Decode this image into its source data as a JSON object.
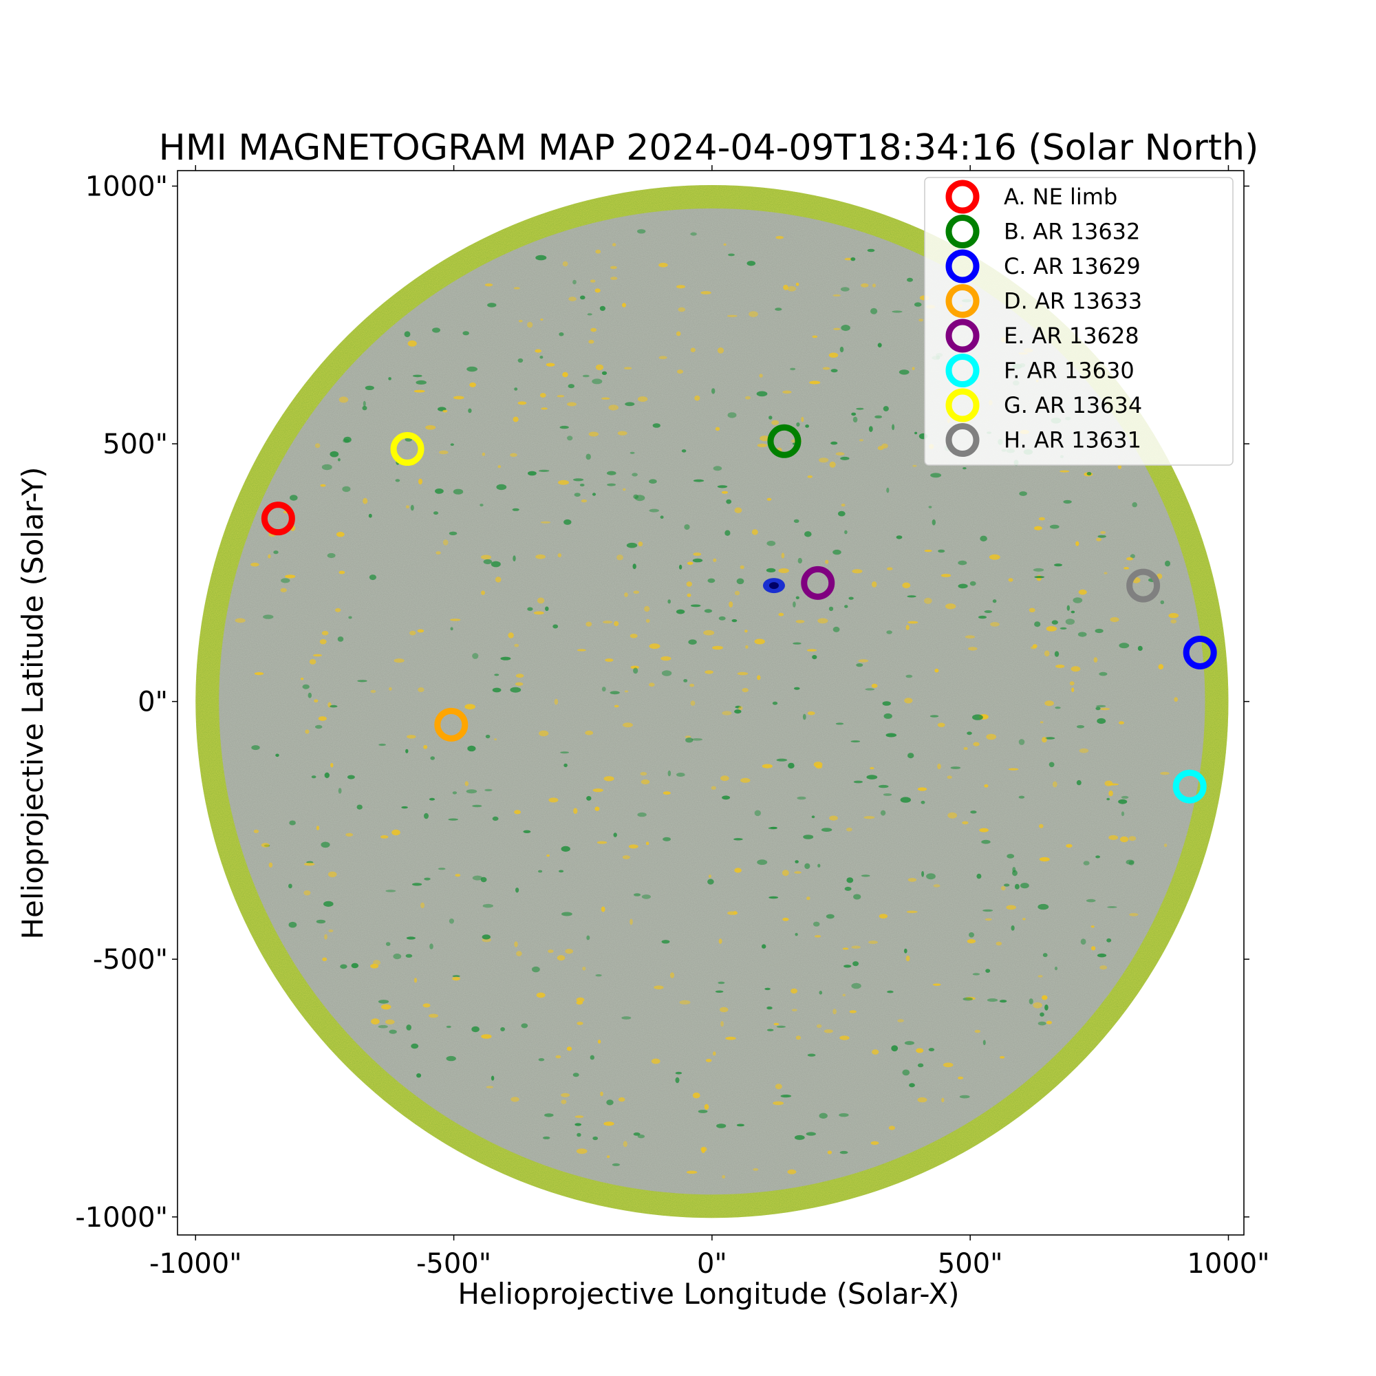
{
  "chart_data": {
    "type": "scatter",
    "title": "HMI MAGNETOGRAM MAP 2024-04-09T18:34:16 (Solar North)",
    "xlabel": "Helioprojective Longitude (Solar-X)",
    "ylabel": "Helioprojective Latitude (Solar-Y)",
    "xlim": [
      -1035,
      1030
    ],
    "ylim": [
      -1035,
      1030
    ],
    "x_ticks": [
      -1000,
      -500,
      0,
      500,
      1000
    ],
    "x_tick_labels": [
      "-1000\"",
      "-500\"",
      "0\"",
      "500\"",
      "1000\""
    ],
    "y_ticks": [
      -1000,
      -500,
      0,
      500,
      1000
    ],
    "y_tick_labels": [
      "-1000\"",
      "-500\"",
      "0\"",
      "500\"",
      "1000\""
    ],
    "solar_radius_arcsec": 1000,
    "legend_position": "top-right",
    "grid": false,
    "series": [
      {
        "name": "A.  NE limb",
        "color": "#ff0000",
        "x": -840,
        "y": 355
      },
      {
        "name": "B.  AR 13632",
        "color": "#008000",
        "x": 140,
        "y": 505
      },
      {
        "name": "C.  AR 13629",
        "color": "#0000ff",
        "x": 945,
        "y": 95
      },
      {
        "name": "D.  AR 13633",
        "color": "#ffa500",
        "x": -505,
        "y": -45
      },
      {
        "name": "E.  AR 13628",
        "color": "#800080",
        "x": 205,
        "y": 230
      },
      {
        "name": "F.  AR 13630",
        "color": "#00ffff",
        "x": 925,
        "y": -165
      },
      {
        "name": "G.  AR 13634",
        "color": "#ffff00",
        "x": -590,
        "y": 490
      },
      {
        "name": "H.  AR 13631",
        "color": "#808080",
        "x": 835,
        "y": 225
      }
    ],
    "background_image": {
      "disk_color": "#9fa59b",
      "limb_ring_color": "#8fb537",
      "positive_polarity_color": "#f5c518",
      "negative_polarity_color": "#1e8f3a"
    }
  }
}
